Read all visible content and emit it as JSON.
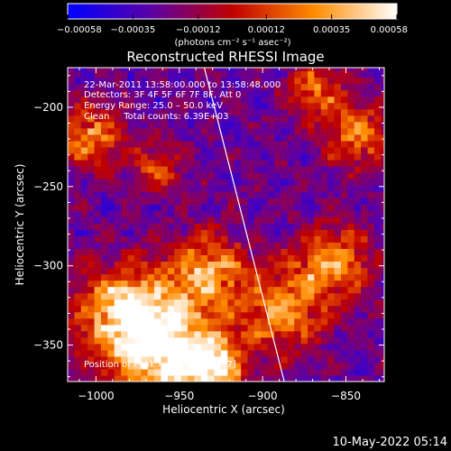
{
  "chart_data": {
    "type": "heatmap",
    "title": "Reconstructed RHESSI Image",
    "xlabel": "Heliocentric X (arcsec)",
    "ylabel": "Heliocentric Y (arcsec)",
    "xlim": [
      -1017,
      -827
    ],
    "ylim": [
      -373,
      -175
    ],
    "x_ticks": [
      -1000,
      -950,
      -900,
      -850
    ],
    "y_ticks": [
      -350,
      -300,
      -250,
      -200
    ],
    "x_tick_labels": [
      "−1000",
      "−950",
      "−900",
      "−850"
    ],
    "y_tick_labels": [
      "−350",
      "−300",
      "−250",
      "−200"
    ],
    "colorbar": {
      "range": [
        -0.00058,
        0.00058
      ],
      "ticks": [
        -0.00058,
        -0.00035,
        -0.00012,
        0.00012,
        0.00035,
        0.00058
      ],
      "tick_labels": [
        "−0.00058",
        "−0.00035",
        "−0.00012",
        "0.00012",
        "0.00035",
        "0.00058"
      ],
      "unit_label": "(photons cm⁻² s⁻¹ asec⁻²)",
      "colormap": [
        "#0000ff",
        "#6000a0",
        "#ff0000",
        "#ffa000",
        "#ffffff"
      ]
    },
    "annotations": [
      "22‑Mar‑2011 13:58:00.000 to 13:58:48.000",
      "Detectors: 3F 4F 5F 6F 7F 8F, Att 0",
      "Energy Range: 25.0 – 50.0 keV",
      "Clean     Total counts: 6.39E+03"
    ],
    "peak_label": "Position of Peak = [−1004, −367]",
    "peak_position": [
      -1004,
      -367
    ],
    "limb_line": [
      [
        -935,
        -175
      ],
      [
        -887,
        -373
      ]
    ],
    "hot_regions": [
      {
        "x": -960,
        "y": -355,
        "intensity": 1.0,
        "spread": 22
      },
      {
        "x": -985,
        "y": -330,
        "intensity": 0.8,
        "spread": 20
      },
      {
        "x": -935,
        "y": -305,
        "intensity": 0.7,
        "spread": 16
      },
      {
        "x": -890,
        "y": -330,
        "intensity": 0.6,
        "spread": 18
      },
      {
        "x": -860,
        "y": -300,
        "intensity": 0.65,
        "spread": 16
      },
      {
        "x": -845,
        "y": -220,
        "intensity": 0.6,
        "spread": 14
      },
      {
        "x": -870,
        "y": -190,
        "intensity": 0.5,
        "spread": 12
      },
      {
        "x": -1005,
        "y": -220,
        "intensity": 0.6,
        "spread": 14
      },
      {
        "x": -965,
        "y": -240,
        "intensity": 0.45,
        "spread": 10
      },
      {
        "x": -930,
        "y": -365,
        "intensity": 0.75,
        "spread": 12
      }
    ]
  },
  "footer": {
    "timestamp": "10‑May‑2022 05:14"
  }
}
